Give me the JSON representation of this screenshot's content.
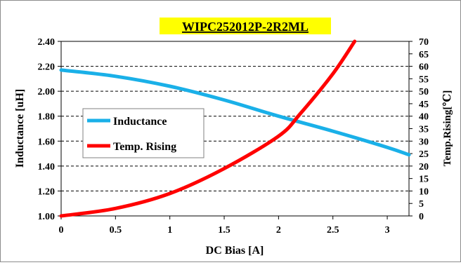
{
  "chart_data": {
    "type": "line",
    "title": "WIPC252012P-2R2ML",
    "title_highlight_color": "#ffff00",
    "xlabel": "DC Bias [A]",
    "ylabel_left": "Inductance [uH]",
    "ylabel_right": "Temp.Rising[℃]",
    "xlim": [
      0,
      3.2
    ],
    "ylim_left": [
      1.0,
      2.4
    ],
    "ylim_right": [
      0,
      70
    ],
    "x_ticks": [
      "0",
      "0.5",
      "1",
      "1.5",
      "2",
      "2.5",
      "3"
    ],
    "y_left_ticks": [
      "1.00",
      "1.20",
      "1.40",
      "1.60",
      "1.80",
      "2.00",
      "2.20",
      "2.40"
    ],
    "y_right_ticks": [
      "0",
      "5",
      "10",
      "15",
      "20",
      "25",
      "30",
      "35",
      "40",
      "45",
      "50",
      "55",
      "60",
      "65",
      "70"
    ],
    "grid": "horizontal dashed",
    "legend_placement": "center-left",
    "series": [
      {
        "name": "Inductance",
        "axis": "left",
        "color": "#1ab0e8",
        "x": [
          0,
          0.5,
          1.0,
          1.5,
          2.0,
          2.5,
          3.0,
          3.2
        ],
        "values": [
          2.17,
          2.12,
          2.04,
          1.93,
          1.8,
          1.68,
          1.55,
          1.49
        ]
      },
      {
        "name": "Temp. Rising",
        "axis": "right",
        "color": "#ff0000",
        "x": [
          0,
          0.5,
          1.0,
          1.5,
          2.0,
          2.2,
          2.5,
          2.7
        ],
        "values": [
          0,
          3,
          9,
          19,
          32,
          41,
          57,
          70
        ]
      }
    ]
  }
}
